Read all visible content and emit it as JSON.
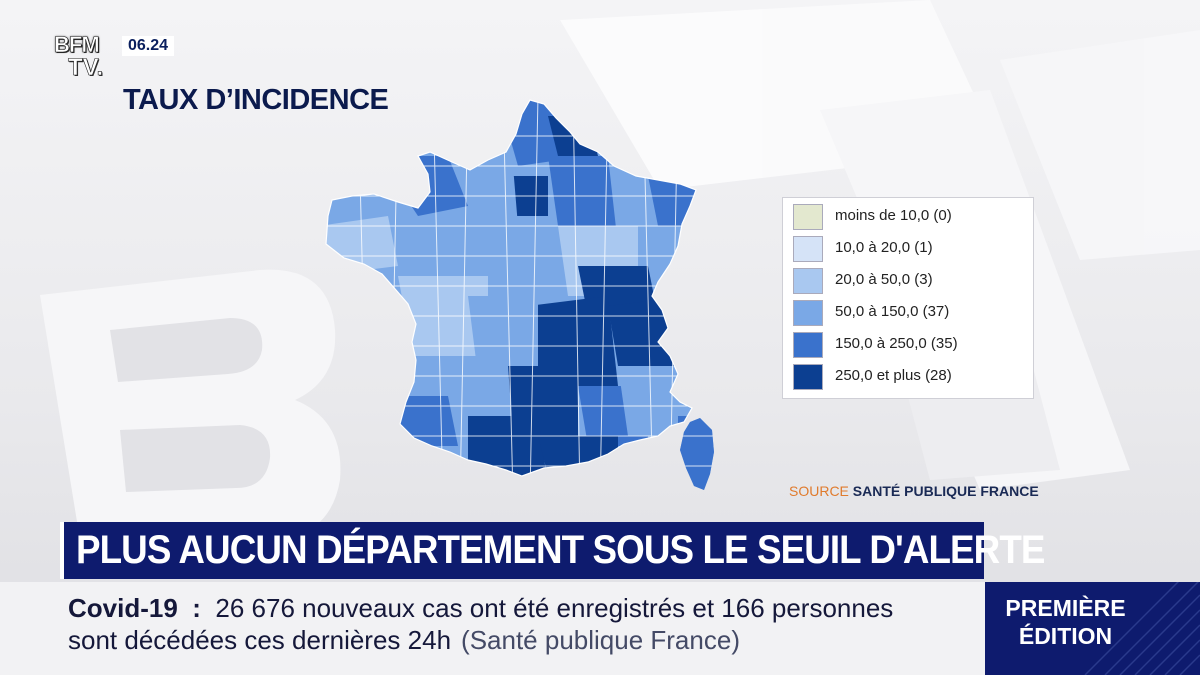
{
  "channel": {
    "logo_line1": "BFM",
    "logo_line2": "TV.",
    "time": "06.24"
  },
  "map": {
    "title": "TAUX D’INCIDENCE",
    "legend": [
      {
        "label": "moins de 10,0 (0)",
        "color": "#e3e8cf"
      },
      {
        "label": "10,0 à 20,0 (1)",
        "color": "#d5e3f7"
      },
      {
        "label": "20,0 à 50,0 (3)",
        "color": "#a9c8f0"
      },
      {
        "label": "50,0 à 150,0 (37)",
        "color": "#7aa8e6"
      },
      {
        "label": "150,0 à 250,0 (35)",
        "color": "#3a72cc"
      },
      {
        "label": "250,0 et plus (28)",
        "color": "#0c3f91"
      }
    ],
    "source_key": "SOURCE",
    "source_value": "SANTÉ PUBLIQUE FRANCE"
  },
  "headline": "PLUS AUCUN DÉPARTEMENT SOUS LE SEUIL D'ALERTE",
  "ticker": {
    "topic": "Covid-19",
    "line1": "26 676 nouveaux cas ont été enregistrés et 166 personnes",
    "line2": "sont décédées ces dernières 24h",
    "source": "(Santé publique France)"
  },
  "edition": {
    "line1": "PREMIÈRE",
    "line2": "ÉDITION"
  },
  "colors": {
    "navy": "#0e1b6e",
    "accent": "#e07b2d"
  }
}
